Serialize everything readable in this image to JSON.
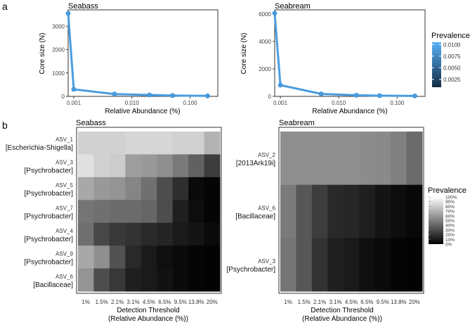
{
  "panel_labels": {
    "a": "a",
    "b": "b"
  },
  "chart_data": [
    {
      "type": "line",
      "title": "Seabass",
      "xlabel": "Relative Abundance (%)",
      "ylabel": "Core size (N)",
      "x_scale": "log10",
      "xlim": [
        0.0008,
        0.3
      ],
      "ylim": [
        0,
        3700
      ],
      "xticks": [
        0.001,
        0.01,
        0.1
      ],
      "xtick_labels": [
        "0.001",
        "0.010",
        "0.100"
      ],
      "yticks": [
        0,
        1000,
        2000,
        3000
      ],
      "ytick_labels": [
        "0",
        "1000",
        "2000",
        "3000"
      ],
      "x": [
        0.0008,
        0.001,
        0.005,
        0.02,
        0.05,
        0.2
      ],
      "y": [
        3550,
        300,
        100,
        60,
        35,
        20
      ],
      "color": "#4a9de0"
    },
    {
      "type": "line",
      "title": "Seabream",
      "xlabel": "Relative Abundance (%)",
      "ylabel": "Core size (N)",
      "x_scale": "log10",
      "xlim": [
        0.0008,
        0.3
      ],
      "ylim": [
        0,
        6300
      ],
      "xticks": [
        0.001,
        0.01,
        0.1
      ],
      "xtick_labels": [
        "0.001",
        "0.010",
        "0.100"
      ],
      "yticks": [
        0,
        2000,
        4000,
        6000
      ],
      "ytick_labels": [
        "0",
        "2000",
        "4000",
        "6000"
      ],
      "x": [
        0.0008,
        0.001,
        0.005,
        0.02,
        0.05,
        0.2
      ],
      "y": [
        6050,
        820,
        180,
        80,
        50,
        30
      ],
      "color": "#4a9de0"
    },
    {
      "type": "heatmap",
      "title": "Seabass",
      "xlabel_line1": "Detection Threshold",
      "xlabel_line2": "(Relative Abundance (%))",
      "x_labels": [
        "1%",
        "1.5%",
        "2.1%",
        "3.1%",
        "4.5%",
        "6.5%",
        "9.5%",
        "13.8%",
        "20%"
      ],
      "rows": [
        {
          "name": "ASV_1",
          "taxon": "[Escherichia-Shigella]"
        },
        {
          "name": "ASV_3",
          "taxon": "[Psychrobacter]"
        },
        {
          "name": "ASV_5",
          "taxon": "[Psychrobacter]"
        },
        {
          "name": "ASV_7",
          "taxon": "[Psychrobacter]"
        },
        {
          "name": "ASV_4",
          "taxon": "[Psychrobacter]"
        },
        {
          "name": "ASV_9",
          "taxon": "[Psychrobacter]"
        },
        {
          "name": "ASV_6",
          "taxon": "[Bacillaceae]"
        }
      ],
      "values": [
        [
          0.82,
          0.82,
          0.82,
          0.84,
          0.84,
          0.84,
          0.82,
          0.82,
          0.7
        ],
        [
          0.88,
          0.82,
          0.8,
          0.62,
          0.6,
          0.56,
          0.48,
          0.38,
          0.24
        ],
        [
          0.66,
          0.6,
          0.58,
          0.52,
          0.44,
          0.3,
          0.18,
          0.04,
          0.02
        ],
        [
          0.46,
          0.44,
          0.42,
          0.42,
          0.4,
          0.3,
          0.12,
          0.05,
          0.02
        ],
        [
          0.44,
          0.28,
          0.22,
          0.2,
          0.16,
          0.14,
          0.1,
          0.08,
          0.04
        ],
        [
          0.66,
          0.56,
          0.32,
          0.16,
          0.1,
          0.06,
          0.04,
          0.02,
          0.01
        ],
        [
          0.58,
          0.3,
          0.22,
          0.12,
          0.1,
          0.07,
          0.04,
          0.02,
          0.01
        ]
      ]
    },
    {
      "type": "heatmap",
      "title": "Seabream",
      "xlabel_line1": "Detection Threshold",
      "xlabel_line2": "(Relative Abundance (%))",
      "x_labels": [
        "1%",
        "1.5%",
        "2.1%",
        "3.1%",
        "4.5%",
        "6.5%",
        "9.5%",
        "13.8%",
        "20%"
      ],
      "rows": [
        {
          "name": "ASV_2",
          "taxon": "[2013Ark19i]"
        },
        {
          "name": "ASV_6",
          "taxon": "[Bacillaceae]"
        },
        {
          "name": "ASV_3",
          "taxon": "[Psychrobacter]"
        }
      ],
      "values": [
        [
          0.56,
          0.56,
          0.56,
          0.56,
          0.56,
          0.55,
          0.54,
          0.5,
          0.42
        ],
        [
          0.48,
          0.34,
          0.24,
          0.16,
          0.15,
          0.12,
          0.08,
          0.05,
          0.03
        ],
        [
          0.46,
          0.34,
          0.2,
          0.12,
          0.1,
          0.06,
          0.04,
          0.02,
          0.01
        ]
      ]
    }
  ],
  "legend_prevalence_a": {
    "title": "Prevalence",
    "ticks": [
      0.01,
      0.0075,
      0.005,
      0.0025
    ],
    "tick_labels": [
      "0.0100",
      "0.0075",
      "0.0050",
      "0.0025"
    ],
    "range": [
      0.0008,
      0.0105
    ],
    "color_low": "#132b43",
    "color_high": "#56b1f7"
  },
  "legend_prevalence_b": {
    "title": "Prevalence",
    "ticks": [
      1.0,
      0.9,
      0.8,
      0.7,
      0.6,
      0.5,
      0.4,
      0.3,
      0.2,
      0.1,
      0.0
    ],
    "tick_labels": [
      "100%",
      "90%",
      "80%",
      "70%",
      "60%",
      "50%",
      "40%",
      "30%",
      "20%",
      "10%",
      "0%"
    ]
  }
}
